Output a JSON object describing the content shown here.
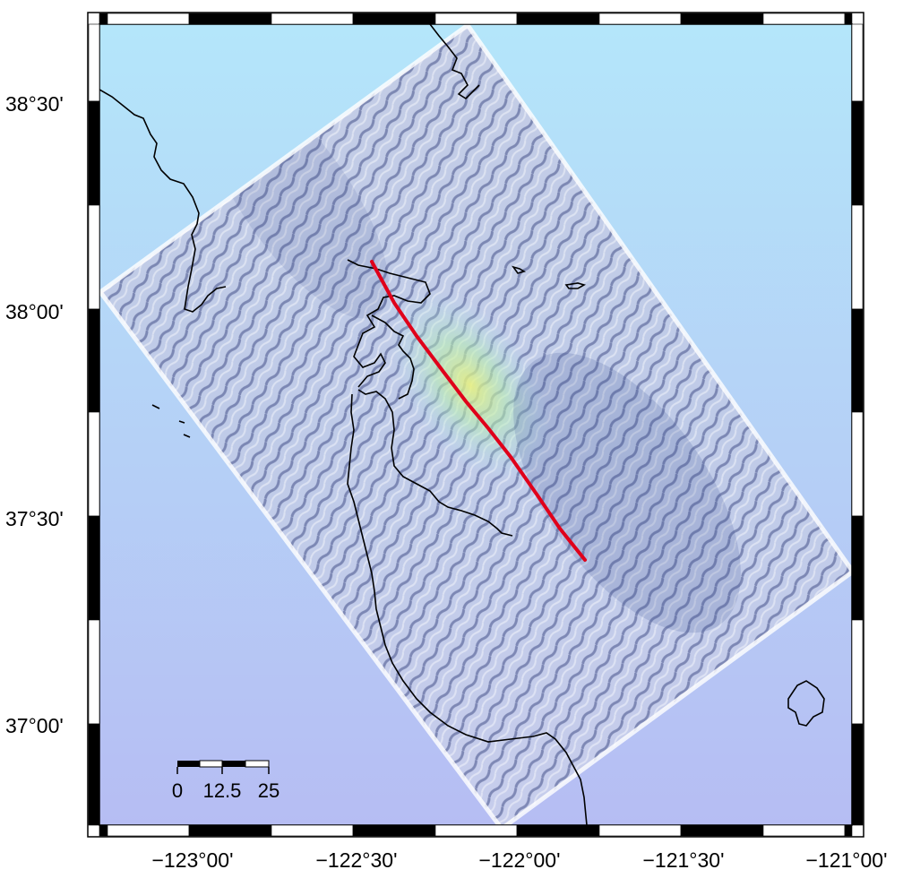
{
  "map": {
    "lat_labels": [
      "38°30'",
      "38°00'",
      "37°30'",
      "37°00'"
    ],
    "lon_labels": [
      "−123°00'",
      "−122°30'",
      "−122°00'",
      "−121°30'",
      "−121°00'"
    ],
    "scale_bar": {
      "labels": [
        "0",
        "12.5",
        "25"
      ]
    },
    "fault_color": "#e0001a",
    "coast_color": "#000000",
    "background_top_color": "#b4e6fa",
    "background_bottom_color": "#b4bcf2"
  }
}
